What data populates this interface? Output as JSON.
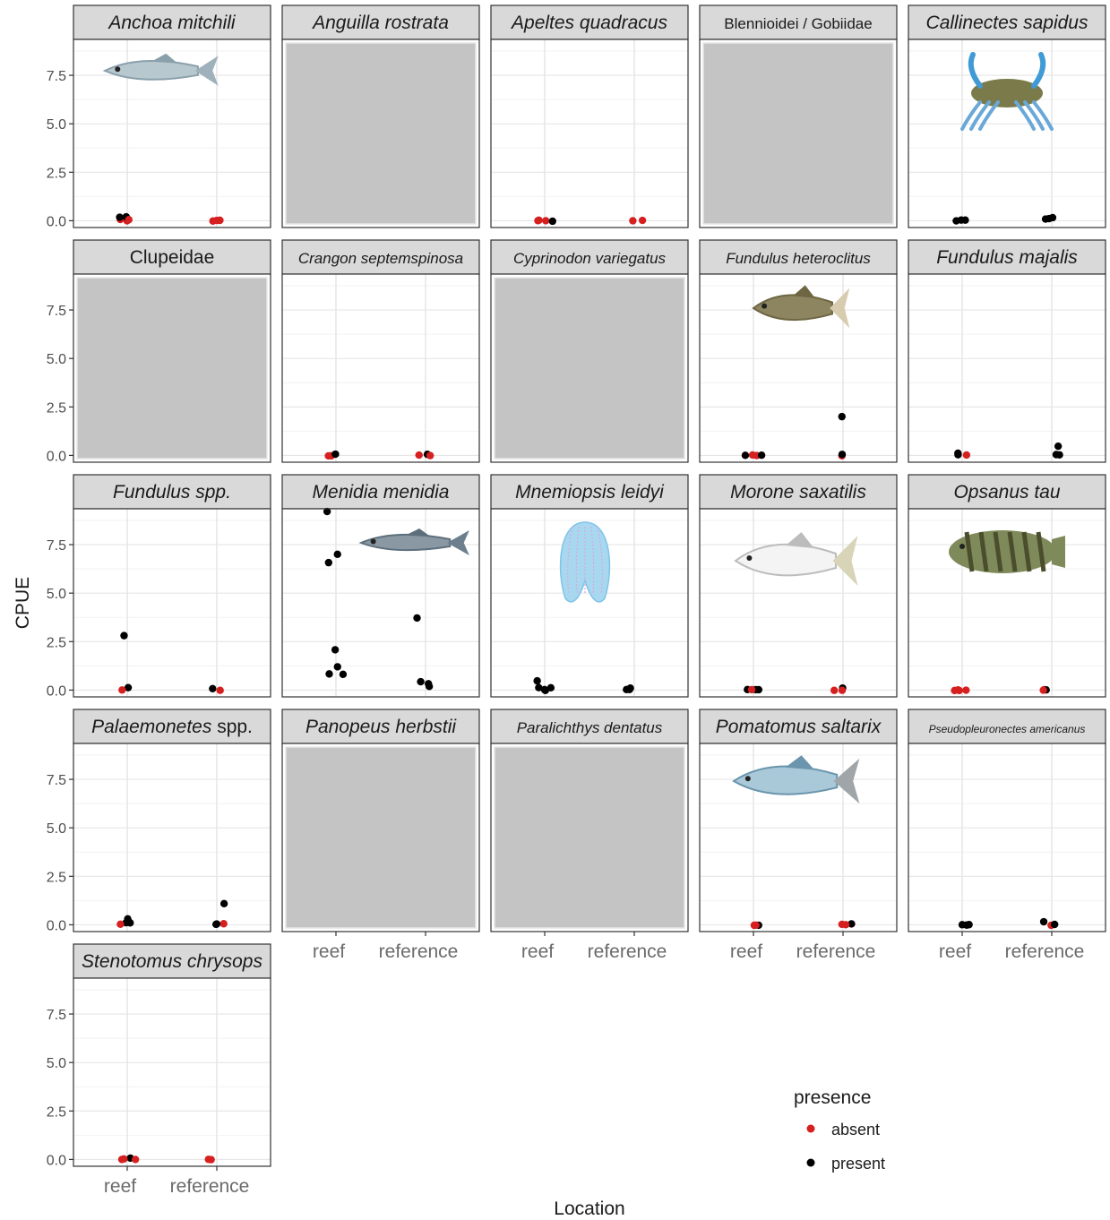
{
  "chart_data": {
    "type": "scatter",
    "facet_layout": "wrap",
    "xlabel": "Location",
    "ylabel": "CPUE",
    "categories": [
      "reef",
      "reference"
    ],
    "y_ticks": [
      "0.0",
      "2.5",
      "5.0",
      "7.5"
    ],
    "ylim": [
      0,
      9.5
    ],
    "grid": true,
    "theme": "bw",
    "legend": {
      "title": "presence",
      "position": "bottom-right",
      "entries": [
        {
          "name": "absent",
          "color": "#d62020"
        },
        {
          "name": "present",
          "color": "#000000"
        }
      ]
    },
    "panels": [
      {
        "title": "Anchoa mitchili",
        "italic": true,
        "photo": "anchovy",
        "no_data": false,
        "points": [
          {
            "x": "reef",
            "y": 0,
            "p": "absent"
          },
          {
            "x": "reef",
            "y": 0.05,
            "p": "absent"
          },
          {
            "x": "reef",
            "y": 0.2,
            "p": "present"
          },
          {
            "x": "reef",
            "y": 0.2,
            "p": "present"
          },
          {
            "x": "reef",
            "y": 0.05,
            "p": "absent"
          },
          {
            "x": "reference",
            "y": 0,
            "p": "absent"
          },
          {
            "x": "reference",
            "y": 0,
            "p": "absent"
          },
          {
            "x": "reference",
            "y": 0,
            "p": "absent"
          },
          {
            "x": "reference",
            "y": 0,
            "p": "absent"
          }
        ]
      },
      {
        "title": "Anguilla rostrata",
        "italic": true,
        "no_data": true,
        "points": []
      },
      {
        "title": "Apeltes quadracus",
        "italic": true,
        "no_data": false,
        "points": [
          {
            "x": "reef",
            "y": 0,
            "p": "absent"
          },
          {
            "x": "reef",
            "y": 0,
            "p": "absent"
          },
          {
            "x": "reef",
            "y": 0,
            "p": "present"
          },
          {
            "x": "reef",
            "y": 0,
            "p": "absent"
          },
          {
            "x": "reference",
            "y": 0,
            "p": "absent"
          },
          {
            "x": "reference",
            "y": 0,
            "p": "absent"
          }
        ]
      },
      {
        "title": "Blennioidei / Gobiidae",
        "italic": false,
        "no_data": true,
        "points": []
      },
      {
        "title": "Callinectes sapidus",
        "italic": true,
        "photo": "crab",
        "no_data": false,
        "points": [
          {
            "x": "reef",
            "y": 0.02,
            "p": "present"
          },
          {
            "x": "reef",
            "y": 0.02,
            "p": "present"
          },
          {
            "x": "reef",
            "y": 0.02,
            "p": "present"
          },
          {
            "x": "reference",
            "y": 0.15,
            "p": "present"
          },
          {
            "x": "reference",
            "y": 0.1,
            "p": "present"
          },
          {
            "x": "reference",
            "y": 0.1,
            "p": "present"
          }
        ]
      },
      {
        "title": "Clupeidae",
        "italic": false,
        "no_data": true,
        "points": []
      },
      {
        "title": "Crangon septemspinosa",
        "italic": true,
        "no_data": false,
        "points": [
          {
            "x": "reef",
            "y": 0,
            "p": "absent"
          },
          {
            "x": "reef",
            "y": 0,
            "p": "absent"
          },
          {
            "x": "reef",
            "y": 0.05,
            "p": "present"
          },
          {
            "x": "reference",
            "y": 0.05,
            "p": "present"
          },
          {
            "x": "reference",
            "y": 0,
            "p": "absent"
          },
          {
            "x": "reference",
            "y": 0,
            "p": "absent"
          }
        ]
      },
      {
        "title": "Cyprinodon variegatus",
        "italic": true,
        "no_data": true,
        "points": []
      },
      {
        "title": "Fundulus heteroclitus",
        "italic": true,
        "photo": "killifish",
        "no_data": false,
        "points": [
          {
            "x": "reef",
            "y": 0,
            "p": "absent"
          },
          {
            "x": "reef",
            "y": 0,
            "p": "present"
          },
          {
            "x": "reef",
            "y": 0,
            "p": "absent"
          },
          {
            "x": "reef",
            "y": 0,
            "p": "present"
          },
          {
            "x": "reference",
            "y": 2.0,
            "p": "present"
          },
          {
            "x": "reference",
            "y": 0,
            "p": "absent"
          },
          {
            "x": "reference",
            "y": 0.05,
            "p": "present"
          }
        ]
      },
      {
        "title": "Fundulus majalis",
        "italic": true,
        "no_data": false,
        "points": [
          {
            "x": "reef",
            "y": 0.1,
            "p": "present"
          },
          {
            "x": "reef",
            "y": 0,
            "p": "absent"
          },
          {
            "x": "reef",
            "y": 0.05,
            "p": "present"
          },
          {
            "x": "reference",
            "y": 0.5,
            "p": "present"
          },
          {
            "x": "reference",
            "y": 0.05,
            "p": "present"
          },
          {
            "x": "reference",
            "y": 0.05,
            "p": "present"
          }
        ]
      },
      {
        "title": "Fundulus spp.",
        "italic": true,
        "no_data": false,
        "points": [
          {
            "x": "reef",
            "y": 0.1,
            "p": "present"
          },
          {
            "x": "reef",
            "y": 2.8,
            "p": "present"
          },
          {
            "x": "reef",
            "y": 0,
            "p": "absent"
          },
          {
            "x": "reference",
            "y": 0,
            "p": "absent"
          },
          {
            "x": "reference",
            "y": 0.1,
            "p": "present"
          }
        ]
      },
      {
        "title": "Menidia menidia",
        "italic": true,
        "photo": "silverside",
        "no_data": false,
        "points": [
          {
            "x": "reef",
            "y": 9.2,
            "p": "present"
          },
          {
            "x": "reef",
            "y": 7.0,
            "p": "present"
          },
          {
            "x": "reef",
            "y": 6.6,
            "p": "present"
          },
          {
            "x": "reef",
            "y": 2.1,
            "p": "present"
          },
          {
            "x": "reef",
            "y": 1.2,
            "p": "present"
          },
          {
            "x": "reef",
            "y": 0.85,
            "p": "present"
          },
          {
            "x": "reef",
            "y": 0.8,
            "p": "present"
          },
          {
            "x": "reference",
            "y": 3.7,
            "p": "present"
          },
          {
            "x": "reference",
            "y": 0.2,
            "p": "present"
          },
          {
            "x": "reference",
            "y": 0.35,
            "p": "present"
          },
          {
            "x": "reference",
            "y": 0.45,
            "p": "present"
          }
        ]
      },
      {
        "title": "Mnemiopsis leidyi",
        "italic": true,
        "photo": "ctenophore",
        "no_data": false,
        "points": [
          {
            "x": "reef",
            "y": 0.1,
            "p": "present"
          },
          {
            "x": "reef",
            "y": 0.45,
            "p": "present"
          },
          {
            "x": "reef",
            "y": 0,
            "p": "present"
          },
          {
            "x": "reef",
            "y": 0.1,
            "p": "present"
          },
          {
            "x": "reef",
            "y": 0,
            "p": "present"
          },
          {
            "x": "reference",
            "y": 0.1,
            "p": "present"
          },
          {
            "x": "reference",
            "y": 0.02,
            "p": "present"
          },
          {
            "x": "reference",
            "y": 0.02,
            "p": "present"
          }
        ]
      },
      {
        "title": "Morone saxatilis",
        "italic": true,
        "photo": "bass",
        "no_data": false,
        "points": [
          {
            "x": "reef",
            "y": 0,
            "p": "present"
          },
          {
            "x": "reef",
            "y": 0,
            "p": "present"
          },
          {
            "x": "reef",
            "y": 0,
            "p": "present"
          },
          {
            "x": "reef",
            "y": 0,
            "p": "absent"
          },
          {
            "x": "reference",
            "y": 0.1,
            "p": "present"
          },
          {
            "x": "reference",
            "y": 0,
            "p": "absent"
          },
          {
            "x": "reference",
            "y": 0,
            "p": "absent"
          }
        ]
      },
      {
        "title": "Opsanus tau",
        "italic": true,
        "photo": "toadfish",
        "no_data": false,
        "points": [
          {
            "x": "reef",
            "y": 0,
            "p": "absent"
          },
          {
            "x": "reef",
            "y": 0,
            "p": "absent"
          },
          {
            "x": "reef",
            "y": 0,
            "p": "absent"
          },
          {
            "x": "reef",
            "y": 0,
            "p": "absent"
          },
          {
            "x": "reference",
            "y": 0,
            "p": "absent"
          },
          {
            "x": "reference",
            "y": 0,
            "p": "present"
          },
          {
            "x": "reference",
            "y": 0,
            "p": "absent"
          }
        ]
      },
      {
        "title": "Palaemonetes",
        "title_suffix": " spp.",
        "italic": true,
        "no_data": false,
        "points": [
          {
            "x": "reef",
            "y": 0.1,
            "p": "present"
          },
          {
            "x": "reef",
            "y": 0.2,
            "p": "present"
          },
          {
            "x": "reef",
            "y": 0.3,
            "p": "present"
          },
          {
            "x": "reef",
            "y": 0.05,
            "p": "absent"
          },
          {
            "x": "reef",
            "y": 0.1,
            "p": "present"
          },
          {
            "x": "reference",
            "y": 1.1,
            "p": "present"
          },
          {
            "x": "reference",
            "y": 0.05,
            "p": "present"
          },
          {
            "x": "reference",
            "y": 0.05,
            "p": "absent"
          },
          {
            "x": "reference",
            "y": 0.05,
            "p": "present"
          }
        ]
      },
      {
        "title": "Panopeus herbstii",
        "italic": true,
        "no_data": true,
        "points": []
      },
      {
        "title": "Paralichthys dentatus",
        "italic": true,
        "no_data": true,
        "points": []
      },
      {
        "title": "Pomatomus saltarix",
        "italic": true,
        "photo": "bluefish",
        "no_data": false,
        "points": [
          {
            "x": "reef",
            "y": 0,
            "p": "present"
          },
          {
            "x": "reef",
            "y": 0,
            "p": "absent"
          },
          {
            "x": "reef",
            "y": 0,
            "p": "absent"
          },
          {
            "x": "reference",
            "y": 0,
            "p": "absent"
          },
          {
            "x": "reference",
            "y": 0.05,
            "p": "present"
          },
          {
            "x": "reference",
            "y": 0,
            "p": "absent"
          }
        ]
      },
      {
        "title": "Pseudopleuronectes americanus",
        "italic": true,
        "small": true,
        "no_data": false,
        "points": [
          {
            "x": "reef",
            "y": 0,
            "p": "present"
          },
          {
            "x": "reef",
            "y": 0,
            "p": "present"
          },
          {
            "x": "reef",
            "y": 0.02,
            "p": "present"
          },
          {
            "x": "reference",
            "y": 0.15,
            "p": "present"
          },
          {
            "x": "reference",
            "y": 0,
            "p": "absent"
          },
          {
            "x": "reference",
            "y": 0,
            "p": "present"
          }
        ]
      },
      {
        "title": "Stenotomus chrysops",
        "italic": true,
        "no_data": false,
        "points": [
          {
            "x": "reef",
            "y": 0.05,
            "p": "present"
          },
          {
            "x": "reef",
            "y": 0,
            "p": "absent"
          },
          {
            "x": "reef",
            "y": 0,
            "p": "absent"
          },
          {
            "x": "reef",
            "y": 0,
            "p": "absent"
          },
          {
            "x": "reference",
            "y": 0,
            "p": "absent"
          },
          {
            "x": "reference",
            "y": 0,
            "p": "absent"
          }
        ]
      }
    ]
  }
}
